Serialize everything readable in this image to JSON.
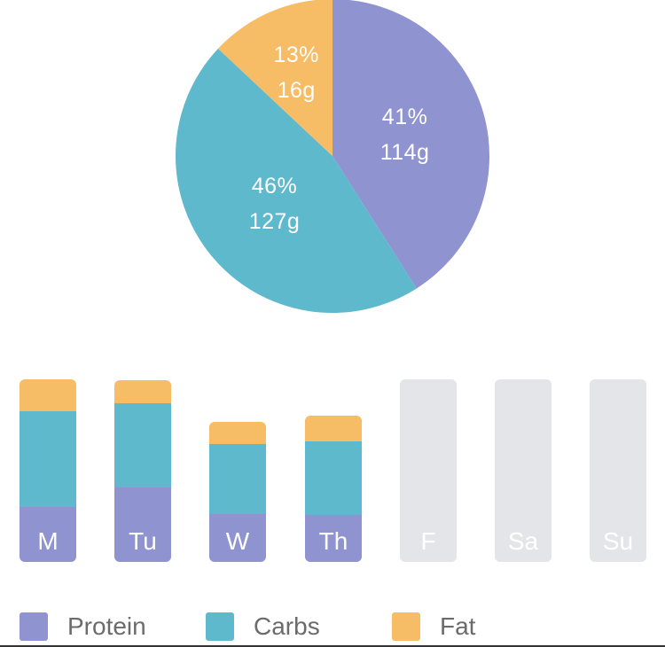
{
  "colors": {
    "protein": "#8f93cf",
    "carbs": "#5fb9cd",
    "fat": "#f6bc66",
    "empty": "#e3e5e8"
  },
  "chart_data": [
    {
      "type": "pie",
      "slices": [
        {
          "name": "Protein",
          "percent": 41,
          "grams": 114,
          "label_pct": "41%",
          "label_g": "114g"
        },
        {
          "name": "Carbs",
          "percent": 46,
          "grams": 127,
          "label_pct": "46%",
          "label_g": "127g"
        },
        {
          "name": "Fat",
          "percent": 13,
          "grams": 16,
          "label_pct": "13%",
          "label_g": "16g"
        }
      ]
    },
    {
      "type": "bar",
      "stacked": true,
      "categories": [
        "M",
        "Tu",
        "W",
        "Th",
        "F",
        "Sa",
        "Su"
      ],
      "series": [
        {
          "name": "Protein",
          "values": [
            62,
            84,
            54,
            53,
            0,
            0,
            0
          ]
        },
        {
          "name": "Carbs",
          "values": [
            108,
            95,
            79,
            83,
            0,
            0,
            0
          ]
        },
        {
          "name": "Fat",
          "values": [
            36,
            26,
            25,
            29,
            0,
            0,
            0
          ]
        }
      ],
      "logged": [
        true,
        true,
        true,
        true,
        false,
        false,
        false
      ]
    }
  ],
  "legend": [
    {
      "name": "Protein",
      "color_key": "protein"
    },
    {
      "name": "Carbs",
      "color_key": "carbs"
    },
    {
      "name": "Fat",
      "color_key": "fat"
    }
  ]
}
